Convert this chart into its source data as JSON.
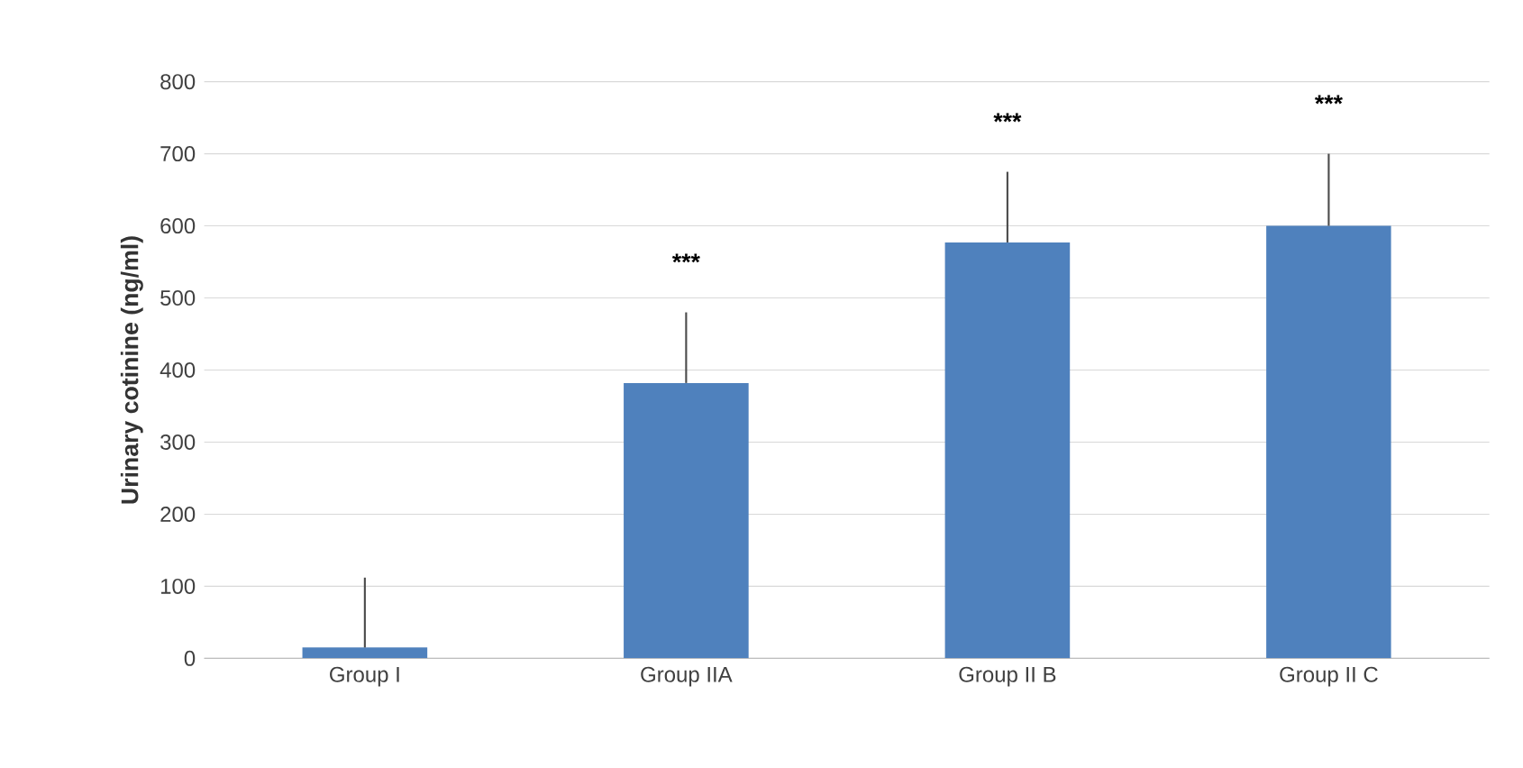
{
  "chart_data": {
    "type": "bar",
    "ylabel": "Urinary cotinine (ng/ml)",
    "categories": [
      "Group I",
      "Group IIA",
      "Group II B",
      "Group II C"
    ],
    "values": [
      15,
      382,
      577,
      600
    ],
    "errors": [
      [
        15,
        112
      ],
      [
        382,
        480
      ],
      [
        577,
        675
      ],
      [
        600,
        700
      ]
    ],
    "color": "#4f81bd",
    "ylim": [
      0,
      800
    ],
    "yticks": [
      0,
      100,
      200,
      300,
      400,
      500,
      600,
      700,
      800
    ],
    "grid": "y",
    "annotations": [
      "***",
      "***",
      "***"
    ]
  }
}
